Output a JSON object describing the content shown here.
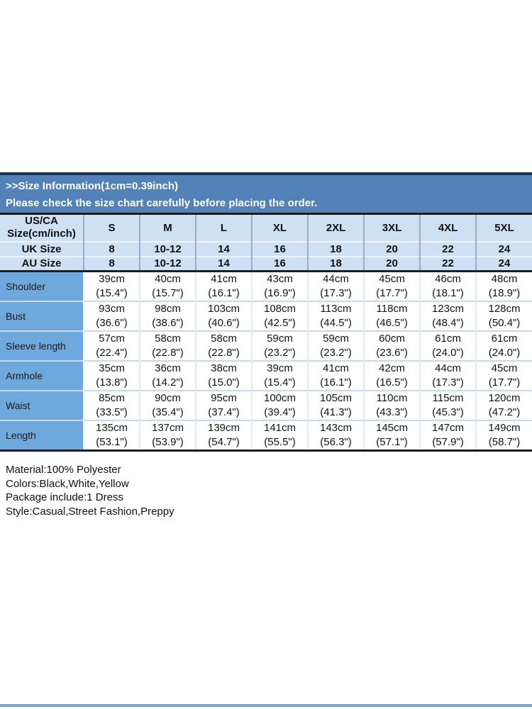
{
  "banner": {
    "title": ">>Size Information(1cm=0.39inch)",
    "subtitle": "Please check the size chart carefully before placing the order."
  },
  "size_chart": {
    "corner_label_line1": "US/CA",
    "corner_label_line2": "Size(cm/inch)",
    "size_columns": [
      "S",
      "M",
      "L",
      "XL",
      "2XL",
      "3XL",
      "4XL",
      "5XL"
    ],
    "region_rows": [
      {
        "label": "UK Size",
        "values": [
          "8",
          "10-12",
          "14",
          "16",
          "18",
          "20",
          "22",
          "24"
        ]
      },
      {
        "label": "AU Size",
        "values": [
          "8",
          "10-12",
          "14",
          "16",
          "18",
          "20",
          "22",
          "24"
        ]
      }
    ],
    "measurement_rows": [
      {
        "label": "Shoulder",
        "values": [
          {
            "cm": "39cm",
            "inch": "(15.4\")"
          },
          {
            "cm": "40cm",
            "inch": "(15.7\")"
          },
          {
            "cm": "41cm",
            "inch": "(16.1\")"
          },
          {
            "cm": "43cm",
            "inch": "(16.9\")"
          },
          {
            "cm": "44cm",
            "inch": "(17.3\")"
          },
          {
            "cm": "45cm",
            "inch": "(17.7\")"
          },
          {
            "cm": "46cm",
            "inch": "(18.1\")"
          },
          {
            "cm": "48cm",
            "inch": "(18.9\")"
          }
        ]
      },
      {
        "label": "Bust",
        "values": [
          {
            "cm": "93cm",
            "inch": "(36.6\")"
          },
          {
            "cm": "98cm",
            "inch": "(38.6\")"
          },
          {
            "cm": "103cm",
            "inch": "(40.6\")"
          },
          {
            "cm": "108cm",
            "inch": "(42.5\")"
          },
          {
            "cm": "113cm",
            "inch": "(44.5\")"
          },
          {
            "cm": "118cm",
            "inch": "(46.5\")"
          },
          {
            "cm": "123cm",
            "inch": "(48.4\")"
          },
          {
            "cm": "128cm",
            "inch": "(50.4\")"
          }
        ]
      },
      {
        "label": "Sleeve length",
        "values": [
          {
            "cm": "57cm",
            "inch": "(22.4\")"
          },
          {
            "cm": "58cm",
            "inch": "(22.8\")"
          },
          {
            "cm": "58cm",
            "inch": "(22.8\")"
          },
          {
            "cm": "59cm",
            "inch": "(23.2\")"
          },
          {
            "cm": "59cm",
            "inch": "(23.2\")"
          },
          {
            "cm": "60cm",
            "inch": "(23.6\")"
          },
          {
            "cm": "61cm",
            "inch": "(24.0\")"
          },
          {
            "cm": "61cm",
            "inch": "(24.0\")"
          }
        ]
      },
      {
        "label": "Armhole",
        "values": [
          {
            "cm": "35cm",
            "inch": "(13.8\")"
          },
          {
            "cm": "36cm",
            "inch": "(14.2\")"
          },
          {
            "cm": "38cm",
            "inch": "(15.0\")"
          },
          {
            "cm": "39cm",
            "inch": "(15.4\")"
          },
          {
            "cm": "41cm",
            "inch": "(16.1\")"
          },
          {
            "cm": "42cm",
            "inch": "(16.5\")"
          },
          {
            "cm": "44cm",
            "inch": "(17.3\")"
          },
          {
            "cm": "45cm",
            "inch": "(17.7\")"
          }
        ]
      },
      {
        "label": "Waist",
        "values": [
          {
            "cm": "85cm",
            "inch": "(33.5\")"
          },
          {
            "cm": "90cm",
            "inch": "(35.4\")"
          },
          {
            "cm": "95cm",
            "inch": "(37.4\")"
          },
          {
            "cm": "100cm",
            "inch": "(39.4\")"
          },
          {
            "cm": "105cm",
            "inch": "(41.3\")"
          },
          {
            "cm": "110cm",
            "inch": "(43.3\")"
          },
          {
            "cm": "115cm",
            "inch": "(45.3\")"
          },
          {
            "cm": "120cm",
            "inch": "(47.2\")"
          }
        ]
      },
      {
        "label": "Length",
        "values": [
          {
            "cm": "135cm",
            "inch": "(53.1\")"
          },
          {
            "cm": "137cm",
            "inch": "(53.9\")"
          },
          {
            "cm": "139cm",
            "inch": "(54.7\")"
          },
          {
            "cm": "141cm",
            "inch": "(55.5\")"
          },
          {
            "cm": "143cm",
            "inch": "(56.3\")"
          },
          {
            "cm": "145cm",
            "inch": "(57.1\")"
          },
          {
            "cm": "147cm",
            "inch": "(57.9\")"
          },
          {
            "cm": "149cm",
            "inch": "(58.7\")"
          }
        ]
      }
    ]
  },
  "product_details": {
    "lines": [
      "Material:100% Polyester",
      "Colors:Black,White,Yellow",
      "Package include:1 Dress",
      "Style:Casual,Street Fashion,Preppy"
    ]
  },
  "colors": {
    "banner_bg": "#5282b8",
    "banner_topline": "#16365c",
    "header_bg": "#cfe0f2",
    "label_col_bg": "#6fa8dc",
    "dark_border": "#1d1d1f",
    "bottom_line": "#6fa8dc"
  }
}
